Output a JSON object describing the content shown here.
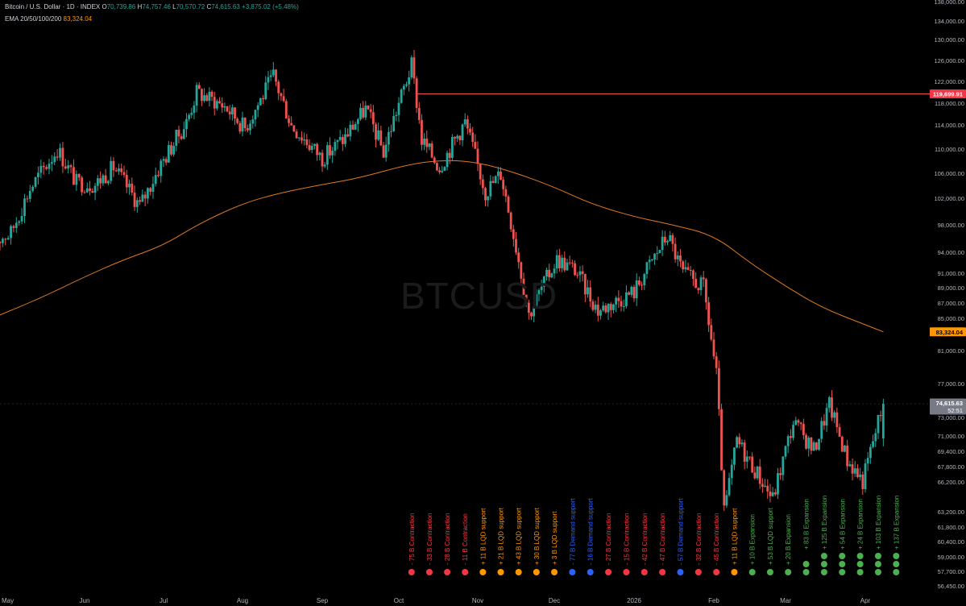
{
  "header": {
    "symbol_title": "Bitcoin / U.S. Dollar · 1D · INDEX",
    "open_key": "O",
    "open": "70,739.86",
    "high_key": "H",
    "high": "74,757.46",
    "low_key": "L",
    "low": "70,570.72",
    "close_key": "C",
    "close": "74,615.63",
    "change": "+3,875.02 (+5.48%)",
    "ema_label": "EMA 20/50/100/200",
    "ema_value": "83,324.04"
  },
  "watermark": "BTCUSD",
  "colors": {
    "up": "#26a69a",
    "down": "#ef5350",
    "ema": "#e07a1f",
    "resistance": "#ef5350",
    "price_label": "#787b86",
    "ema_label": "#ff9800",
    "contraction": "#f23645",
    "lqd": "#ff9800",
    "demand": "#2962ff",
    "expansion": "#4caf50"
  },
  "chart_data": {
    "type": "candlestick",
    "x_tick_labels": [
      "May",
      "Jun",
      "Jul",
      "Aug",
      "Sep",
      "Oct",
      "Nov",
      "Dec",
      "2026",
      "Feb",
      "Mar",
      "Apr"
    ],
    "y_tick_labels": [
      "138,000.00",
      "134,000.00",
      "130,000.00",
      "126,000.00",
      "122,000.00",
      "118,000.00",
      "114,000.00",
      "110,000.00",
      "106,000.00",
      "102,000.00",
      "98,000.00",
      "94,000.00",
      "91,000.00",
      "89,000.00",
      "87,000.00",
      "85,000.00",
      "81,000.00",
      "77,000.00",
      "73,000.00",
      "71,000.00",
      "69,400.00",
      "67,800.00",
      "66,200.00",
      "63,200.00",
      "61,800.00",
      "60,400.00",
      "59,000.00",
      "57,700.00",
      "56,450.00"
    ],
    "y_scale": "log",
    "y_range": [
      56450,
      138000
    ],
    "resistance_level": {
      "value": 119699.91,
      "label": "119,699.91"
    },
    "ema_last": {
      "value": 83324.04,
      "label": "83,324.04"
    },
    "last_price": {
      "value": 74615.63,
      "label": "74,615.63",
      "countdown": "52:51"
    },
    "ema_path": [
      [
        "2025-04-28",
        85000
      ],
      [
        "2025-05-15",
        87500
      ],
      [
        "2025-06-01",
        90500
      ],
      [
        "2025-06-15",
        92800
      ],
      [
        "2025-07-01",
        95000
      ],
      [
        "2025-07-15",
        98200
      ],
      [
        "2025-08-01",
        101200
      ],
      [
        "2025-08-15",
        102800
      ],
      [
        "2025-09-01",
        104200
      ],
      [
        "2025-09-15",
        105200
      ],
      [
        "2025-10-06",
        107600
      ],
      [
        "2025-10-20",
        108200
      ],
      [
        "2025-11-01",
        107800
      ],
      [
        "2025-11-15",
        106200
      ],
      [
        "2025-12-01",
        103800
      ],
      [
        "2025-12-15",
        101200
      ],
      [
        "2026-01-01",
        99200
      ],
      [
        "2026-01-15",
        98100
      ],
      [
        "2026-02-01",
        96500
      ],
      [
        "2026-02-15",
        92500
      ],
      [
        "2026-03-01",
        89200
      ],
      [
        "2026-03-15",
        86400
      ],
      [
        "2026-04-01",
        84200
      ],
      [
        "2026-04-08",
        83324
      ]
    ],
    "price_path": [
      [
        "2025-04-28",
        95500
      ],
      [
        "2025-05-05",
        96800
      ],
      [
        "2025-05-12",
        103500
      ],
      [
        "2025-05-22",
        110000
      ],
      [
        "2025-05-29",
        104500
      ],
      [
        "2025-06-05",
        104200
      ],
      [
        "2025-06-12",
        107000
      ],
      [
        "2025-06-22",
        100800
      ],
      [
        "2025-06-30",
        107500
      ],
      [
        "2025-07-10",
        114500
      ],
      [
        "2025-07-14",
        120000
      ],
      [
        "2025-07-25",
        117500
      ],
      [
        "2025-08-02",
        113500
      ],
      [
        "2025-08-13",
        123000
      ],
      [
        "2025-08-20",
        114000
      ],
      [
        "2025-09-01",
        108500
      ],
      [
        "2025-09-10",
        112000
      ],
      [
        "2025-09-18",
        117000
      ],
      [
        "2025-09-25",
        109500
      ],
      [
        "2025-10-06",
        125000
      ],
      [
        "2025-10-10",
        111500
      ],
      [
        "2025-10-17",
        107000
      ],
      [
        "2025-10-27",
        114500
      ],
      [
        "2025-11-04",
        103000
      ],
      [
        "2025-11-10",
        106000
      ],
      [
        "2025-11-21",
        85500
      ],
      [
        "2025-12-02",
        93000
      ],
      [
        "2025-12-09",
        91500
      ],
      [
        "2025-12-18",
        86000
      ],
      [
        "2026-01-01",
        88500
      ],
      [
        "2026-01-14",
        96500
      ],
      [
        "2026-01-20",
        91000
      ],
      [
        "2026-01-28",
        89000
      ],
      [
        "2026-02-02",
        78000
      ],
      [
        "2026-02-05",
        63000
      ],
      [
        "2026-02-10",
        70500
      ],
      [
        "2026-02-17",
        67500
      ],
      [
        "2026-02-24",
        64500
      ],
      [
        "2026-03-04",
        72500
      ],
      [
        "2026-03-12",
        69500
      ],
      [
        "2026-03-18",
        74500
      ],
      [
        "2026-03-25",
        68500
      ],
      [
        "2026-03-31",
        66300
      ],
      [
        "2026-04-08",
        74615
      ]
    ],
    "annotations": [
      {
        "text": "- 75 B Contraction",
        "type": "contraction",
        "date": "2025-10-06"
      },
      {
        "text": "- 33 B Contraction",
        "type": "contraction",
        "date": "2025-10-13"
      },
      {
        "text": "- 28 B Contraction",
        "type": "contraction",
        "date": "2025-10-20"
      },
      {
        "text": "- 11 B Contraction",
        "type": "contraction",
        "date": "2025-10-27"
      },
      {
        "text": "+ 11 B LQD support",
        "type": "lqd",
        "date": "2025-11-03"
      },
      {
        "text": "+ 21 B LQD support",
        "type": "lqd",
        "date": "2025-11-10"
      },
      {
        "text": "+ 43 B LQD support",
        "type": "lqd",
        "date": "2025-11-17"
      },
      {
        "text": "+ 30 B LQD support",
        "type": "lqd",
        "date": "2025-11-24"
      },
      {
        "text": "+ 3 B LQD support",
        "type": "lqd",
        "date": "2025-12-01"
      },
      {
        "text": "- 77 B Demand support",
        "type": "demand",
        "date": "2025-12-08"
      },
      {
        "text": "- 16 B Demand support",
        "type": "demand",
        "date": "2025-12-15"
      },
      {
        "text": "- 27 B Contraction",
        "type": "contraction",
        "date": "2025-12-22"
      },
      {
        "text": "- 15 B Contraction",
        "type": "contraction",
        "date": "2025-12-29"
      },
      {
        "text": "- 42 B Contraction",
        "type": "contraction",
        "date": "2026-01-05"
      },
      {
        "text": "- 47 B Contraction",
        "type": "contraction",
        "date": "2026-01-12"
      },
      {
        "text": "- 57 B Demand support",
        "type": "demand",
        "date": "2026-01-19"
      },
      {
        "text": "- 32 B Contraction",
        "type": "contraction",
        "date": "2026-01-26"
      },
      {
        "text": "- 45 B Contraction",
        "type": "contraction",
        "date": "2026-02-02"
      },
      {
        "text": "+ 11 B LQD support",
        "type": "lqd",
        "date": "2026-02-09"
      },
      {
        "text": "+ 10 B Expansion",
        "type": "expansion",
        "date": "2026-02-16"
      },
      {
        "text": "+ 53 B LQD support",
        "type": "expansion",
        "date": "2026-02-23"
      },
      {
        "text": "+ 20 B Expansion",
        "type": "expansion",
        "date": "2026-03-02"
      },
      {
        "text": "+ 83 B Expansion",
        "type": "expansion",
        "date": "2026-03-09"
      },
      {
        "text": "+ 125 B Expansion",
        "type": "expansion",
        "date": "2026-03-16"
      },
      {
        "text": "+ 54 B Expansion",
        "type": "expansion",
        "date": "2026-03-23"
      },
      {
        "text": "+ 24 B Expansion",
        "type": "expansion",
        "date": "2026-03-30"
      },
      {
        "text": "+ 103 B Expansion",
        "type": "expansion",
        "date": "2026-04-06"
      },
      {
        "text": "+ 137 B Expansion",
        "type": "expansion",
        "date": "2026-04-13"
      }
    ]
  }
}
